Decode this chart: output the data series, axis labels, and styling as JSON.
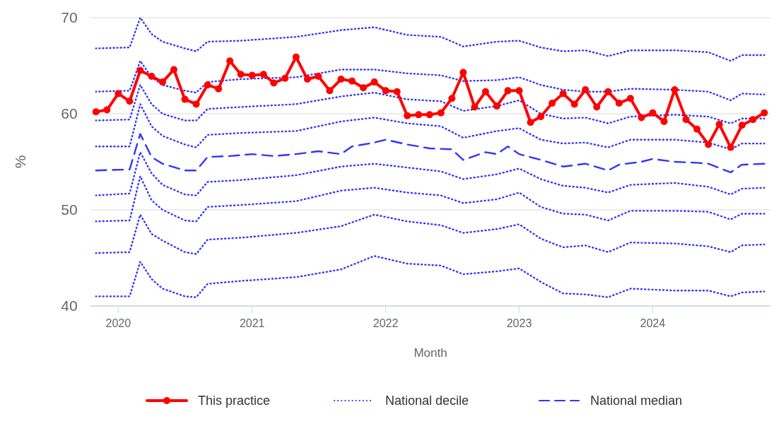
{
  "chart_data": {
    "type": "line",
    "xlabel": "Month",
    "ylabel": "%",
    "ylim": [
      40,
      70
    ],
    "yticks": [
      40,
      50,
      60,
      70
    ],
    "xlim": [
      "2019-10-17",
      "2024-11-18"
    ],
    "xticks": [
      "2020",
      "2021",
      "2022",
      "2023",
      "2024"
    ],
    "grid": "y",
    "legend": "bottom",
    "x": [
      "2019-11",
      "2019-12",
      "2020-01",
      "2020-02",
      "2020-03",
      "2020-04",
      "2020-05",
      "2020-06",
      "2020-07",
      "2020-08",
      "2020-09",
      "2020-10",
      "2020-11",
      "2020-12",
      "2021-01",
      "2021-02",
      "2021-03",
      "2021-04",
      "2021-05",
      "2021-06",
      "2021-07",
      "2021-08",
      "2021-09",
      "2021-10",
      "2021-11",
      "2021-12",
      "2022-01",
      "2022-02",
      "2022-03",
      "2022-04",
      "2022-05",
      "2022-06",
      "2022-07",
      "2022-08",
      "2022-09",
      "2022-10",
      "2022-11",
      "2022-12",
      "2023-01",
      "2023-02",
      "2023-03",
      "2023-04",
      "2023-05",
      "2023-06",
      "2023-07",
      "2023-08",
      "2023-09",
      "2023-10",
      "2023-11",
      "2023-12",
      "2024-01",
      "2024-02",
      "2024-03",
      "2024-04",
      "2024-05",
      "2024-06",
      "2024-07",
      "2024-08",
      "2024-09",
      "2024-10",
      "2024-11"
    ],
    "series": [
      {
        "name": "This practice",
        "color": "#ff0000",
        "line_style": "solid",
        "marker": "circle",
        "values": [
          60.2,
          60.4,
          62.1,
          61.3,
          64.5,
          63.9,
          63.3,
          64.6,
          61.5,
          61.0,
          63.0,
          62.6,
          65.5,
          64.1,
          64.0,
          64.1,
          63.2,
          63.7,
          65.9,
          63.6,
          63.9,
          62.4,
          63.6,
          63.4,
          62.7,
          63.3,
          62.4,
          62.3,
          59.8,
          59.9,
          59.9,
          60.1,
          61.6,
          64.3,
          60.7,
          62.3,
          60.8,
          62.4,
          62.4,
          59.1,
          59.7,
          61.1,
          62.1,
          61.0,
          62.5,
          60.7,
          62.3,
          61.1,
          61.6,
          59.6,
          60.1,
          59.2,
          62.5,
          59.4,
          58.4,
          56.8,
          58.9,
          56.5,
          58.8,
          59.4,
          60.1
        ]
      },
      {
        "name": "National decile",
        "color": "#3333ff",
        "line_style": "dotted",
        "marker": "none",
        "x": [
          "2019-11",
          "2020-02",
          "2020-03",
          "2020-04",
          "2020-05",
          "2020-07",
          "2020-08",
          "2020-09",
          "2020-12",
          "2021-05",
          "2021-09",
          "2021-12",
          "2022-03",
          "2022-06",
          "2022-08",
          "2022-11",
          "2023-01",
          "2023-03",
          "2023-05",
          "2023-07",
          "2023-09",
          "2023-11",
          "2024-03",
          "2024-06",
          "2024-08",
          "2024-09",
          "2024-11"
        ],
        "values": [
          66.8,
          66.9,
          70.0,
          68.3,
          67.5,
          66.8,
          66.5,
          67.5,
          67.6,
          68.0,
          68.7,
          69.0,
          68.2,
          68.0,
          67.0,
          67.5,
          67.6,
          66.9,
          66.5,
          66.6,
          66.0,
          66.6,
          66.6,
          66.4,
          65.5,
          66.1,
          66.1
        ]
      },
      {
        "color": "#3333ff",
        "line_style": "dotted",
        "marker": "none",
        "x": [
          "2019-11",
          "2020-02",
          "2020-03",
          "2020-04",
          "2020-05",
          "2020-07",
          "2020-08",
          "2020-09",
          "2020-12",
          "2021-05",
          "2021-09",
          "2021-12",
          "2022-03",
          "2022-06",
          "2022-08",
          "2022-11",
          "2023-01",
          "2023-03",
          "2023-05",
          "2023-07",
          "2023-09",
          "2023-11",
          "2024-03",
          "2024-06",
          "2024-08",
          "2024-09",
          "2024-11"
        ],
        "values": [
          62.3,
          62.4,
          65.5,
          63.8,
          63.0,
          62.4,
          62.2,
          63.3,
          63.6,
          63.8,
          64.6,
          64.6,
          64.2,
          64.0,
          63.4,
          63.5,
          63.8,
          63.0,
          62.5,
          62.3,
          62.3,
          62.6,
          62.5,
          62.3,
          61.4,
          62.1,
          62.0
        ]
      },
      {
        "color": "#3333ff",
        "line_style": "dotted",
        "marker": "none",
        "x": [
          "2019-11",
          "2020-02",
          "2020-03",
          "2020-04",
          "2020-05",
          "2020-07",
          "2020-08",
          "2020-09",
          "2020-12",
          "2021-05",
          "2021-09",
          "2021-12",
          "2022-03",
          "2022-06",
          "2022-08",
          "2022-11",
          "2023-01",
          "2023-03",
          "2023-05",
          "2023-07",
          "2023-09",
          "2023-11",
          "2024-03",
          "2024-06",
          "2024-08",
          "2024-09",
          "2024-11"
        ],
        "values": [
          59.3,
          59.4,
          63.0,
          61.0,
          60.0,
          59.3,
          59.3,
          60.5,
          60.7,
          61.0,
          61.8,
          62.2,
          61.5,
          61.3,
          60.3,
          60.8,
          61.4,
          60.0,
          59.5,
          59.6,
          59.0,
          59.7,
          59.9,
          59.7,
          59.0,
          59.5,
          59.5
        ]
      },
      {
        "color": "#3333ff",
        "line_style": "dotted",
        "marker": "none",
        "x": [
          "2019-11",
          "2020-02",
          "2020-03",
          "2020-04",
          "2020-05",
          "2020-07",
          "2020-08",
          "2020-09",
          "2020-12",
          "2021-05",
          "2021-09",
          "2021-12",
          "2022-03",
          "2022-06",
          "2022-08",
          "2022-11",
          "2023-01",
          "2023-03",
          "2023-05",
          "2023-07",
          "2023-09",
          "2023-11",
          "2024-03",
          "2024-06",
          "2024-08",
          "2024-09",
          "2024-11"
        ],
        "values": [
          56.6,
          56.6,
          61.0,
          58.7,
          57.7,
          56.8,
          56.5,
          57.8,
          58.0,
          58.2,
          59.2,
          59.6,
          59.0,
          58.7,
          57.5,
          58.2,
          58.5,
          57.3,
          56.9,
          57.0,
          56.5,
          57.3,
          57.3,
          57.0,
          56.3,
          56.9,
          56.9
        ]
      },
      {
        "name": "National median",
        "color": "#3333ff",
        "line_style": "dashed",
        "marker": "none",
        "x": [
          "2019-11",
          "2020-02",
          "2020-03",
          "2020-04",
          "2020-05",
          "2020-07",
          "2020-08",
          "2020-09",
          "2020-11",
          "2021-01",
          "2021-03",
          "2021-05",
          "2021-07",
          "2021-09",
          "2021-10",
          "2021-12",
          "2022-01",
          "2022-03",
          "2022-05",
          "2022-07",
          "2022-08",
          "2022-10",
          "2022-11",
          "2022-12",
          "2023-01",
          "2023-03",
          "2023-05",
          "2023-07",
          "2023-09",
          "2023-10",
          "2023-12",
          "2024-01",
          "2024-03",
          "2024-05",
          "2024-06",
          "2024-08",
          "2024-09",
          "2024-11"
        ],
        "values": [
          54.1,
          54.2,
          57.9,
          55.5,
          54.8,
          54.1,
          54.1,
          55.5,
          55.6,
          55.8,
          55.6,
          55.8,
          56.1,
          55.8,
          56.6,
          57.0,
          57.3,
          56.8,
          56.4,
          56.3,
          55.2,
          56.0,
          55.8,
          56.6,
          55.8,
          55.2,
          54.5,
          54.8,
          54.1,
          54.7,
          55.0,
          55.3,
          55.0,
          54.9,
          54.8,
          53.9,
          54.7,
          54.8
        ]
      },
      {
        "color": "#3333ff",
        "line_style": "dotted",
        "marker": "none",
        "x": [
          "2019-11",
          "2020-02",
          "2020-03",
          "2020-04",
          "2020-05",
          "2020-07",
          "2020-08",
          "2020-09",
          "2020-12",
          "2021-05",
          "2021-09",
          "2021-12",
          "2022-03",
          "2022-06",
          "2022-08",
          "2022-11",
          "2023-01",
          "2023-03",
          "2023-05",
          "2023-07",
          "2023-09",
          "2023-11",
          "2024-03",
          "2024-06",
          "2024-08",
          "2024-09",
          "2024-11"
        ],
        "values": [
          51.5,
          51.7,
          56.0,
          53.8,
          52.6,
          51.6,
          51.5,
          52.9,
          53.1,
          53.6,
          54.5,
          54.8,
          54.4,
          54.0,
          53.2,
          53.7,
          54.3,
          53.2,
          52.5,
          52.3,
          51.8,
          52.6,
          52.8,
          52.4,
          51.6,
          52.2,
          52.3
        ]
      },
      {
        "color": "#3333ff",
        "line_style": "dotted",
        "marker": "none",
        "x": [
          "2019-11",
          "2020-02",
          "2020-03",
          "2020-04",
          "2020-05",
          "2020-07",
          "2020-08",
          "2020-09",
          "2020-12",
          "2021-05",
          "2021-09",
          "2021-12",
          "2022-03",
          "2022-06",
          "2022-08",
          "2022-11",
          "2023-01",
          "2023-03",
          "2023-05",
          "2023-07",
          "2023-09",
          "2023-11",
          "2024-03",
          "2024-06",
          "2024-08",
          "2024-09",
          "2024-11"
        ],
        "values": [
          48.8,
          48.9,
          53.5,
          51.0,
          50.0,
          48.9,
          48.8,
          50.3,
          50.5,
          50.9,
          52.0,
          52.3,
          51.8,
          51.5,
          50.7,
          51.1,
          51.8,
          50.3,
          49.6,
          49.5,
          48.9,
          49.9,
          49.9,
          49.8,
          49.0,
          49.6,
          49.6
        ]
      },
      {
        "color": "#3333ff",
        "line_style": "dotted",
        "marker": "none",
        "x": [
          "2019-11",
          "2020-02",
          "2020-03",
          "2020-04",
          "2020-05",
          "2020-07",
          "2020-08",
          "2020-09",
          "2020-12",
          "2021-05",
          "2021-09",
          "2021-12",
          "2022-03",
          "2022-06",
          "2022-08",
          "2022-11",
          "2023-01",
          "2023-03",
          "2023-05",
          "2023-07",
          "2023-09",
          "2023-11",
          "2024-03",
          "2024-06",
          "2024-08",
          "2024-09",
          "2024-11"
        ],
        "values": [
          45.5,
          45.6,
          49.5,
          47.5,
          46.8,
          45.6,
          45.4,
          46.9,
          47.1,
          47.6,
          48.3,
          49.5,
          48.8,
          48.4,
          47.6,
          48.0,
          48.5,
          47.0,
          46.1,
          46.3,
          45.6,
          46.6,
          46.5,
          46.2,
          45.6,
          46.3,
          46.4
        ]
      },
      {
        "color": "#3333ff",
        "line_style": "dotted",
        "marker": "none",
        "x": [
          "2019-11",
          "2020-02",
          "2020-03",
          "2020-04",
          "2020-05",
          "2020-07",
          "2020-08",
          "2020-09",
          "2020-12",
          "2021-05",
          "2021-09",
          "2021-12",
          "2022-03",
          "2022-06",
          "2022-08",
          "2022-11",
          "2023-01",
          "2023-03",
          "2023-05",
          "2023-07",
          "2023-09",
          "2023-11",
          "2024-03",
          "2024-06",
          "2024-08",
          "2024-09",
          "2024-11"
        ],
        "values": [
          41.0,
          41.0,
          44.6,
          42.8,
          41.8,
          41.0,
          40.9,
          42.3,
          42.6,
          43.0,
          43.8,
          45.2,
          44.4,
          44.2,
          43.3,
          43.6,
          43.9,
          42.5,
          41.3,
          41.2,
          40.9,
          41.8,
          41.6,
          41.6,
          41.0,
          41.4,
          41.5
        ]
      }
    ]
  }
}
